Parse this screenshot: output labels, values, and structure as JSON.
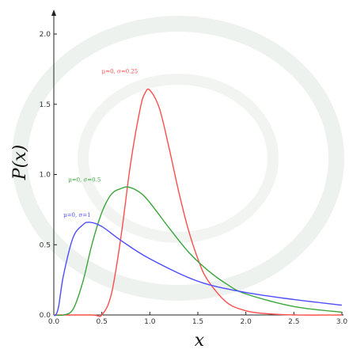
{
  "background": {
    "decor": "faint-watermark-emblem",
    "color": "#e8eee8"
  },
  "chart_data": {
    "type": "line",
    "title": "",
    "xlabel": "x",
    "ylabel": "P(x)",
    "xlim": [
      0,
      3.0
    ],
    "ylim": [
      0,
      2.0
    ],
    "x_ticks": [
      "0.0",
      "0.5",
      "1.0",
      "1.5",
      "2.0",
      "2.5",
      "3.0"
    ],
    "y_ticks": [
      "0.0",
      "0.5",
      "1.0",
      "1.5",
      "2.0"
    ],
    "grid": false,
    "legend": "none",
    "series": [
      {
        "name": "μ=0, σ=0.25",
        "color": "#ff4d4d",
        "x": [
          0.4,
          0.5,
          0.6,
          0.7,
          0.8,
          0.9,
          0.95,
          1.0,
          1.1,
          1.2,
          1.3,
          1.4,
          1.5,
          1.6,
          1.8,
          2.0,
          2.2,
          2.5,
          3.0
        ],
        "y": [
          0.0,
          0.0,
          0.15,
          0.56,
          1.08,
          1.47,
          1.58,
          1.6,
          1.47,
          1.19,
          0.88,
          0.61,
          0.4,
          0.25,
          0.09,
          0.03,
          0.01,
          0.0,
          0.0
        ]
      },
      {
        "name": "μ=0, σ=0.5",
        "color": "#3aa53a",
        "x": [
          0.1,
          0.2,
          0.3,
          0.4,
          0.5,
          0.6,
          0.7,
          0.78,
          0.9,
          1.0,
          1.2,
          1.4,
          1.6,
          1.8,
          2.0,
          2.5,
          3.0
        ],
        "y": [
          0.0,
          0.04,
          0.23,
          0.51,
          0.73,
          0.86,
          0.9,
          0.91,
          0.87,
          0.8,
          0.62,
          0.45,
          0.32,
          0.22,
          0.15,
          0.06,
          0.02
        ]
      },
      {
        "name": "μ=0, σ=1",
        "color": "#4d4dff",
        "x": [
          0.02,
          0.05,
          0.1,
          0.2,
          0.3,
          0.37,
          0.5,
          0.7,
          1.0,
          1.5,
          2.0,
          2.5,
          3.0
        ],
        "y": [
          0.0,
          0.06,
          0.28,
          0.55,
          0.64,
          0.66,
          0.63,
          0.53,
          0.4,
          0.24,
          0.16,
          0.11,
          0.07
        ]
      }
    ],
    "annotations": [
      {
        "text": "μ=0, σ=0.25",
        "series": 0,
        "x": 0.5,
        "y": 1.72
      },
      {
        "text": "μ=0, σ=0.5",
        "series": 1,
        "x": 0.15,
        "y": 0.95
      },
      {
        "text": "μ=0, σ=1",
        "series": 2,
        "x": 0.1,
        "y": 0.7
      }
    ]
  }
}
